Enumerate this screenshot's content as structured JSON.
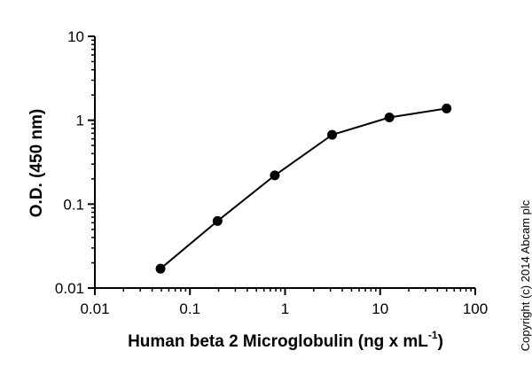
{
  "chart_data": {
    "type": "line",
    "title": "",
    "xlabel_main": "Human beta 2 Microglobulin (ng x mL",
    "xlabel_sup": "-1",
    "xlabel_close": ")",
    "ylabel": "O.D. (450 nm)",
    "xscale": "log",
    "yscale": "log",
    "xlim": [
      0.01,
      100
    ],
    "ylim": [
      0.01,
      10
    ],
    "xticks": [
      0.01,
      0.1,
      1,
      10,
      100
    ],
    "xtick_labels": [
      "0.01",
      "0.1",
      "1",
      "10",
      "100"
    ],
    "yticks": [
      0.01,
      0.1,
      1,
      10
    ],
    "ytick_labels": [
      "0.01",
      "0.1",
      "1",
      "10"
    ],
    "grid": false,
    "markers": "filled-circle",
    "series": [
      {
        "x": [
          0.049,
          0.195,
          0.78,
          3.125,
          12.5,
          50
        ],
        "y": [
          0.017,
          0.063,
          0.22,
          0.67,
          1.08,
          1.38
        ]
      }
    ]
  },
  "copyright": "Copyright (c) 2014 Abcam plc"
}
